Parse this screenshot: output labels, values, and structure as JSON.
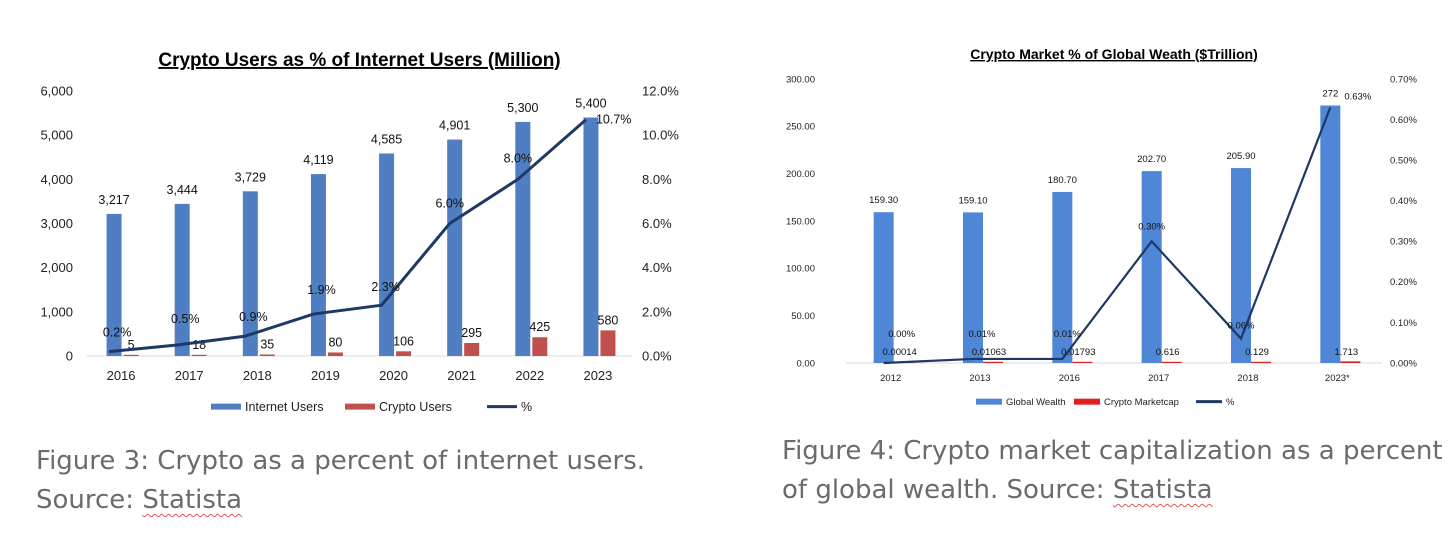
{
  "chart_data": [
    {
      "type": "bar",
      "title": "Crypto Users as % of Internet Users (Million)",
      "categories": [
        "2016",
        "2017",
        "2018",
        "2019",
        "2020",
        "2021",
        "2022",
        "2023"
      ],
      "series": [
        {
          "name": "Internet Users",
          "kind": "bar",
          "axis": "left",
          "color": "#4f7fc2",
          "values": [
            3217,
            3444,
            3729,
            4119,
            4585,
            4901,
            5300,
            5400
          ],
          "labels": [
            "3,217",
            "3,444",
            "3,729",
            "4,119",
            "4,585",
            "4,901",
            "5,300",
            "5,400"
          ]
        },
        {
          "name": "Crypto Users",
          "kind": "bar",
          "axis": "left",
          "color": "#c0504d",
          "values": [
            5,
            18,
            35,
            80,
            106,
            295,
            425,
            580
          ],
          "labels": [
            "5",
            "18",
            "35",
            "80",
            "106",
            "295",
            "425",
            "580"
          ]
        },
        {
          "name": "%",
          "kind": "line",
          "axis": "right",
          "color": "#1f3864",
          "values": [
            0.2,
            0.5,
            0.9,
            1.9,
            2.3,
            6.0,
            8.0,
            10.7
          ],
          "labels": [
            "0.2%",
            "0.5%",
            "0.9%",
            "1.9%",
            "2.3%",
            "6.0%",
            "8.0%",
            "10.7%"
          ]
        }
      ],
      "ylim": [
        0,
        6000
      ],
      "y_ticks": [
        "0",
        "1,000",
        "2,000",
        "3,000",
        "4,000",
        "5,000",
        "6,000"
      ],
      "y2lim": [
        0,
        12
      ],
      "y2_ticks": [
        "0.0%",
        "2.0%",
        "4.0%",
        "6.0%",
        "8.0%",
        "10.0%",
        "12.0%"
      ],
      "grid": false,
      "legend": "bottom"
    },
    {
      "type": "bar",
      "title": "Crypto Market % of Global Weath ($Trillion)",
      "categories": [
        "2012",
        "2013",
        "2016",
        "2017",
        "2018",
        "2023*"
      ],
      "series": [
        {
          "name": "Global Wealth",
          "kind": "bar",
          "axis": "left",
          "color": "#4f86d6",
          "values": [
            159.3,
            159.1,
            180.7,
            202.7,
            205.9,
            272
          ],
          "labels": [
            "159.30",
            "159.10",
            "180.70",
            "202.70",
            "205.90",
            "272"
          ]
        },
        {
          "name": "Crypto Marketcap",
          "kind": "bar",
          "axis": "left",
          "color": "#e02020",
          "values": [
            0.00014,
            0.01063,
            0.01793,
            0.616,
            0.129,
            1.713
          ],
          "labels": [
            "0.00014",
            "0.01063",
            "0.01793",
            "0.616",
            "0.129",
            "1.713"
          ]
        },
        {
          "name": "%",
          "kind": "line",
          "axis": "right",
          "color": "#1f3864",
          "values": [
            0.0,
            0.01,
            0.01,
            0.3,
            0.06,
            0.63
          ],
          "labels": [
            "0.00%",
            "0.01%",
            "0.01%",
            "0.30%",
            "0.06%",
            "0.63%"
          ]
        }
      ],
      "ylim": [
        0,
        300
      ],
      "y_ticks": [
        "0.00",
        "50.00",
        "100.00",
        "150.00",
        "200.00",
        "250.00",
        "300.00"
      ],
      "y2lim": [
        0,
        0.7
      ],
      "y2_ticks": [
        "0.00%",
        "0.10%",
        "0.20%",
        "0.30%",
        "0.40%",
        "0.50%",
        "0.60%",
        "0.70%"
      ],
      "grid": false,
      "legend": "bottom"
    }
  ],
  "captions": [
    {
      "text": "Figure 3: Crypto as a percent of internet users. Source: ",
      "link": "Statista"
    },
    {
      "text": "Figure 4: Crypto market capitalization as a percent of global wealth. Source: ",
      "link": "Statista"
    }
  ]
}
